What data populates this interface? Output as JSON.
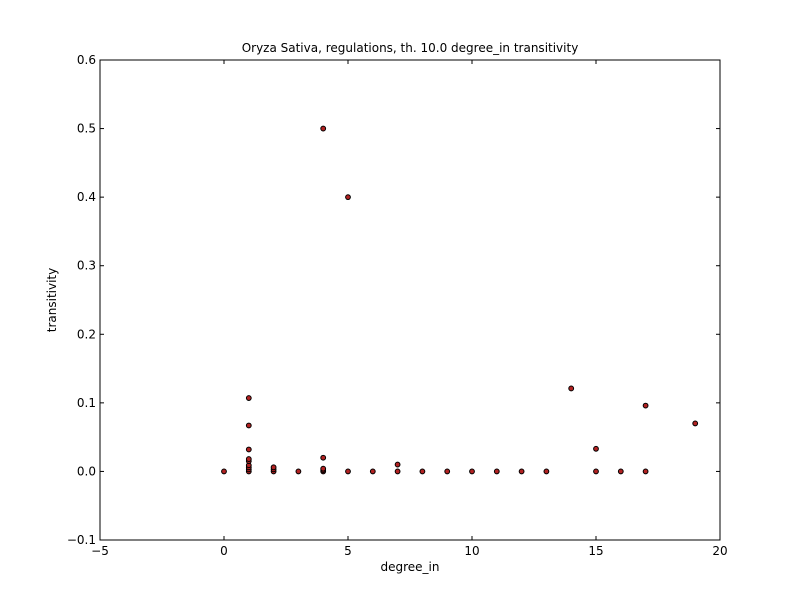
{
  "chart_data": {
    "type": "scatter",
    "title": "Oryza Sativa, regulations, th. 10.0 degree_in transitivity",
    "xlabel": "degree_in",
    "ylabel": "transitivity",
    "xlim": [
      -5,
      20
    ],
    "ylim": [
      -0.1,
      0.6
    ],
    "xticks": [
      -5,
      0,
      5,
      10,
      15,
      20
    ],
    "yticks": [
      -0.1,
      0.0,
      0.1,
      0.2,
      0.3,
      0.4,
      0.5,
      0.6
    ],
    "xtick_labels": [
      "−5",
      "0",
      "5",
      "10",
      "15",
      "20"
    ],
    "ytick_labels": [
      "−0.1",
      "0.0",
      "0.1",
      "0.2",
      "0.3",
      "0.4",
      "0.5",
      "0.6"
    ],
    "grid": false,
    "marker_fill": "#b22222",
    "marker_edge": "#000000",
    "points": [
      {
        "x": 0,
        "y": 0.0
      },
      {
        "x": 1,
        "y": 0.0
      },
      {
        "x": 1,
        "y": 0.003
      },
      {
        "x": 1,
        "y": 0.006
      },
      {
        "x": 1,
        "y": 0.009
      },
      {
        "x": 1,
        "y": 0.015
      },
      {
        "x": 1,
        "y": 0.018
      },
      {
        "x": 1,
        "y": 0.032
      },
      {
        "x": 1,
        "y": 0.067
      },
      {
        "x": 1,
        "y": 0.107
      },
      {
        "x": 2,
        "y": 0.0
      },
      {
        "x": 2,
        "y": 0.003
      },
      {
        "x": 2,
        "y": 0.006
      },
      {
        "x": 3,
        "y": 0.0
      },
      {
        "x": 4,
        "y": 0.0
      },
      {
        "x": 4,
        "y": 0.002
      },
      {
        "x": 4,
        "y": 0.004
      },
      {
        "x": 4,
        "y": 0.02
      },
      {
        "x": 4,
        "y": 0.5
      },
      {
        "x": 5,
        "y": 0.0
      },
      {
        "x": 5,
        "y": 0.4
      },
      {
        "x": 6,
        "y": 0.0
      },
      {
        "x": 7,
        "y": 0.0
      },
      {
        "x": 7,
        "y": 0.01
      },
      {
        "x": 8,
        "y": 0.0
      },
      {
        "x": 9,
        "y": 0.0
      },
      {
        "x": 10,
        "y": 0.0
      },
      {
        "x": 11,
        "y": 0.0
      },
      {
        "x": 12,
        "y": 0.0
      },
      {
        "x": 13,
        "y": 0.0
      },
      {
        "x": 14,
        "y": 0.121
      },
      {
        "x": 15,
        "y": 0.0
      },
      {
        "x": 15,
        "y": 0.033
      },
      {
        "x": 16,
        "y": 0.0
      },
      {
        "x": 17,
        "y": 0.0
      },
      {
        "x": 17,
        "y": 0.096
      },
      {
        "x": 19,
        "y": 0.07
      }
    ]
  }
}
